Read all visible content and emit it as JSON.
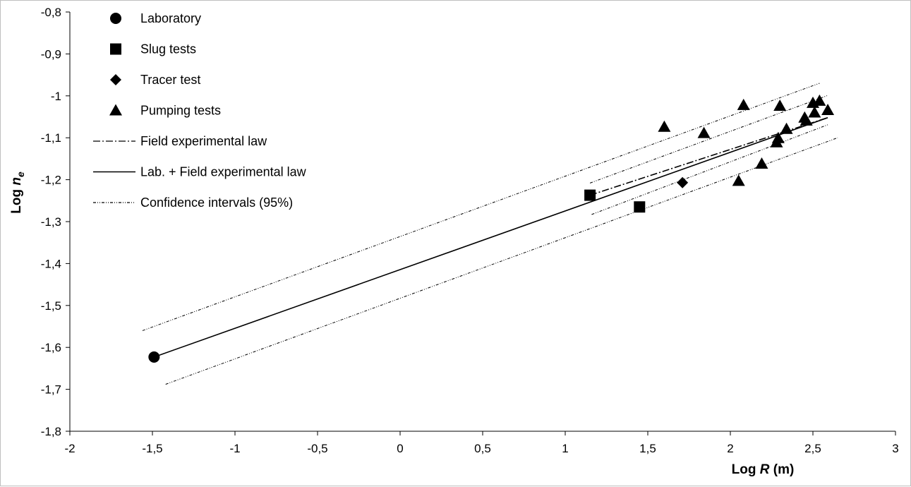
{
  "chart_data": {
    "type": "scatter",
    "xlabel": {
      "prefix": "Log ",
      "italic": "R",
      "suffix": " (m)"
    },
    "ylabel": {
      "prefix": "Log ",
      "italic": "n",
      "sub": "e"
    },
    "xlim": [
      -2,
      3
    ],
    "ylim": [
      -1.8,
      -0.8
    ],
    "x_ticks": [
      -2,
      -1.5,
      -1,
      -0.5,
      0,
      0.5,
      1,
      1.5,
      2,
      2.5,
      3
    ],
    "x_tick_labels": [
      "-2",
      "-1,5",
      "-1",
      "-0,5",
      "0",
      "0,5",
      "1",
      "1,5",
      "2",
      "2,5",
      "3"
    ],
    "y_ticks": [
      -0.8,
      -0.9,
      -1.0,
      -1.1,
      -1.2,
      -1.3,
      -1.4,
      -1.5,
      -1.6,
      -1.7,
      -1.8
    ],
    "y_tick_labels": [
      "-0,8",
      "-0,9",
      "-1",
      "-1,1",
      "-1,2",
      "-1,3",
      "-1,4",
      "-1,5",
      "-1,6",
      "-1,7",
      "-1,8"
    ],
    "grid": false,
    "legend_position": "top-left",
    "series": [
      {
        "name": "Laboratory",
        "marker": "circle",
        "points": [
          [
            -1.49,
            -1.623
          ]
        ]
      },
      {
        "name": "Slug tests",
        "marker": "square",
        "points": [
          [
            1.15,
            -1.237
          ],
          [
            1.45,
            -1.265
          ]
        ]
      },
      {
        "name": "Tracer test",
        "marker": "diamond",
        "points": [
          [
            1.71,
            -1.207
          ]
        ]
      },
      {
        "name": "Pumping tests",
        "marker": "triangle",
        "points": [
          [
            1.6,
            -1.074
          ],
          [
            1.84,
            -1.089
          ],
          [
            2.08,
            -1.022
          ],
          [
            2.3,
            -1.024
          ],
          [
            2.05,
            -1.203
          ],
          [
            2.19,
            -1.162
          ],
          [
            2.28,
            -1.111
          ],
          [
            2.29,
            -1.101
          ],
          [
            2.34,
            -1.079
          ],
          [
            2.45,
            -1.052
          ],
          [
            2.46,
            -1.059
          ],
          [
            2.5,
            -1.017
          ],
          [
            2.51,
            -1.04
          ],
          [
            2.54,
            -1.012
          ],
          [
            2.59,
            -1.034
          ]
        ]
      }
    ],
    "lines": [
      {
        "name": "Field experimental law",
        "style": "dashdot",
        "x": [
          1.15,
          2.59
        ],
        "y": [
          -1.237,
          -1.052
        ]
      },
      {
        "name": "Lab. + Field experimental law",
        "style": "solid",
        "x": [
          -1.49,
          2.59
        ],
        "y": [
          -1.623,
          -1.052
        ]
      },
      {
        "name": "Confidence intervals (95%)",
        "style": "dashdotdot",
        "x": [
          -1.56,
          2.54
        ],
        "y": [
          -1.56,
          -0.97
        ]
      },
      {
        "name": "",
        "style": "dashdotdot",
        "x": [
          -1.42,
          2.65
        ],
        "y": [
          -1.688,
          -1.1
        ]
      },
      {
        "name": "",
        "style": "dashdotdot",
        "x": [
          1.15,
          2.59
        ],
        "y": [
          -1.208,
          -0.999
        ]
      },
      {
        "name": "",
        "style": "dashdotdot",
        "x": [
          1.16,
          2.59
        ],
        "y": [
          -1.283,
          -1.069
        ]
      }
    ]
  }
}
